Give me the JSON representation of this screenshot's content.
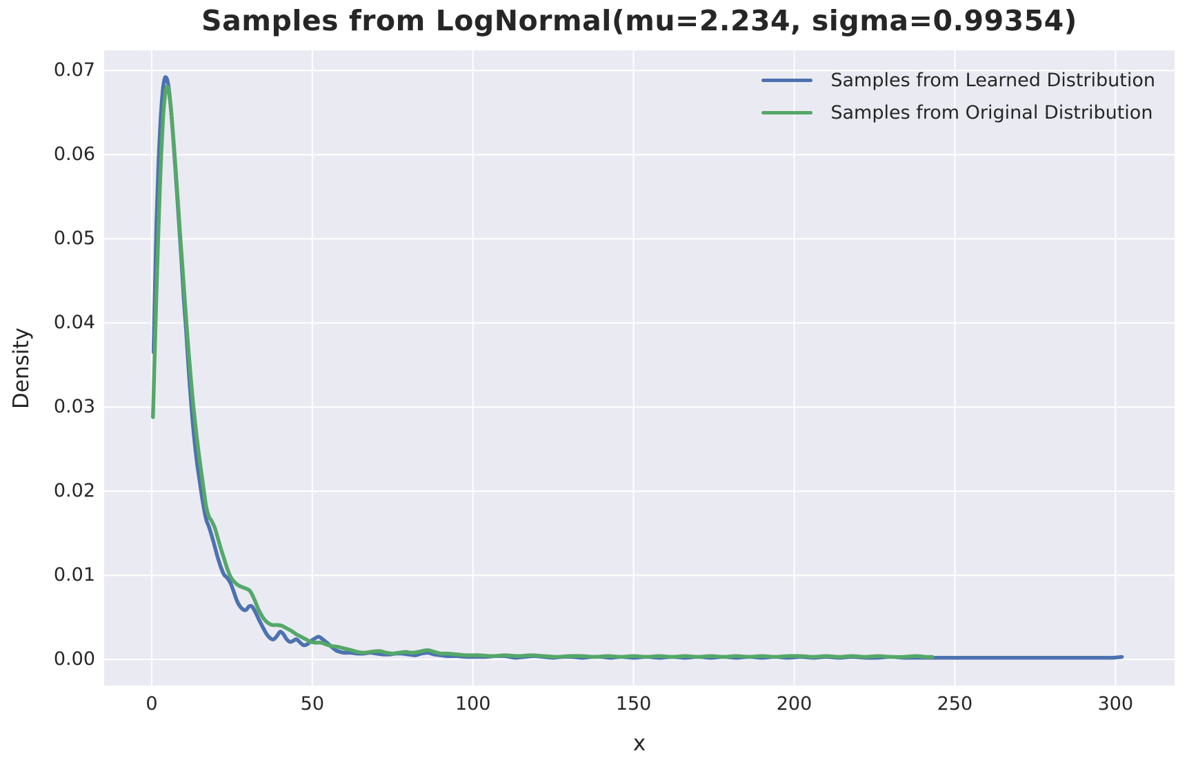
{
  "chart_data": {
    "type": "line",
    "subtype": "kde-density",
    "title": "Samples from LogNormal(mu=2.234, sigma=0.99354)",
    "distribution_params": {
      "mu": 2.234,
      "sigma": 0.99354
    },
    "xlabel": "x",
    "ylabel": "Density",
    "xlim": [
      -14.8,
      318.4
    ],
    "ylim": [
      -0.0031,
      0.0724
    ],
    "xtick_values": [
      0,
      50,
      100,
      150,
      200,
      250,
      300
    ],
    "xtick_labels": [
      "0",
      "50",
      "100",
      "150",
      "200",
      "250",
      "300"
    ],
    "ytick_values": [
      0.0,
      0.01,
      0.02,
      0.03,
      0.04,
      0.05,
      0.06,
      0.07
    ],
    "ytick_labels": [
      "0.00",
      "0.01",
      "0.02",
      "0.03",
      "0.04",
      "0.05",
      "0.06",
      "0.07"
    ],
    "grid": true,
    "style": "seaborn-darkgrid",
    "axes_background": "#EAEAF2",
    "gridline_color": "#FFFFFF",
    "text_color": "#262626",
    "line_width": 5.5,
    "legend": {
      "position": "upper right",
      "frame": false
    },
    "series": [
      {
        "name": "Samples from Learned Distribution",
        "color": "#4C72B0",
        "points": [
          [
            0.6,
            0.0365
          ],
          [
            0.8,
            0.0405
          ],
          [
            1.1,
            0.0455
          ],
          [
            1.5,
            0.052
          ],
          [
            2,
            0.0578
          ],
          [
            2.5,
            0.0622
          ],
          [
            3,
            0.0655
          ],
          [
            3.5,
            0.0678
          ],
          [
            4,
            0.069
          ],
          [
            4.4,
            0.0692
          ],
          [
            4.9,
            0.0688
          ],
          [
            5.4,
            0.0676
          ],
          [
            6,
            0.0654
          ],
          [
            6.6,
            0.0625
          ],
          [
            7.2,
            0.0592
          ],
          [
            7.9,
            0.0553
          ],
          [
            8.6,
            0.0512
          ],
          [
            9.2,
            0.0478
          ],
          [
            10,
            0.0428
          ],
          [
            10.7,
            0.0392
          ],
          [
            11.5,
            0.0345
          ],
          [
            12.2,
            0.0308
          ],
          [
            13,
            0.0272
          ],
          [
            14,
            0.0237
          ],
          [
            15,
            0.021
          ],
          [
            16,
            0.0185
          ],
          [
            17,
            0.0166
          ],
          [
            17.8,
            0.0158
          ],
          [
            18.6,
            0.0148
          ],
          [
            19.5,
            0.0136
          ],
          [
            20.5,
            0.0122
          ],
          [
            21.5,
            0.011
          ],
          [
            22.5,
            0.0101
          ],
          [
            23.5,
            0.0097
          ],
          [
            24.5,
            0.0091
          ],
          [
            25.5,
            0.0081
          ],
          [
            26.5,
            0.007
          ],
          [
            27.5,
            0.0063
          ],
          [
            28.6,
            0.0059
          ],
          [
            29.4,
            0.0059
          ],
          [
            30.3,
            0.0063
          ],
          [
            31.2,
            0.0063
          ],
          [
            32.2,
            0.0057
          ],
          [
            33.3,
            0.0048
          ],
          [
            34.5,
            0.0039
          ],
          [
            35.8,
            0.003
          ],
          [
            37,
            0.0025
          ],
          [
            38,
            0.0024
          ],
          [
            39,
            0.0028
          ],
          [
            40,
            0.0033
          ],
          [
            41,
            0.003
          ],
          [
            42,
            0.0024
          ],
          [
            43,
            0.0021
          ],
          [
            44,
            0.0022
          ],
          [
            45,
            0.0024
          ],
          [
            46,
            0.0021
          ],
          [
            47.2,
            0.0017
          ],
          [
            48.4,
            0.0018
          ],
          [
            49.6,
            0.0022
          ],
          [
            50.8,
            0.0025
          ],
          [
            52,
            0.0027
          ],
          [
            53.2,
            0.0024
          ],
          [
            54.5,
            0.002
          ],
          [
            56,
            0.0015
          ],
          [
            57.3,
            0.0011
          ],
          [
            58.6,
            0.0009
          ],
          [
            60,
            0.0008
          ],
          [
            62,
            0.0008
          ],
          [
            64,
            0.0007
          ],
          [
            66,
            0.0007
          ],
          [
            68,
            0.0008
          ],
          [
            70,
            0.0007
          ],
          [
            72,
            0.0006
          ],
          [
            74,
            0.0006
          ],
          [
            76,
            0.0007
          ],
          [
            78,
            0.0007
          ],
          [
            80,
            0.0006
          ],
          [
            82,
            0.0005
          ],
          [
            84,
            0.0007
          ],
          [
            86,
            0.0008
          ],
          [
            88,
            0.0006
          ],
          [
            90,
            0.0005
          ],
          [
            92,
            0.0004
          ],
          [
            95,
            0.0004
          ],
          [
            98,
            0.0003
          ],
          [
            101,
            0.0003
          ],
          [
            104,
            0.0003
          ],
          [
            107,
            0.0004
          ],
          [
            110,
            0.0004
          ],
          [
            113,
            0.0002
          ],
          [
            116,
            0.0003
          ],
          [
            119,
            0.0004
          ],
          [
            122,
            0.0003
          ],
          [
            125,
            0.0002
          ],
          [
            128,
            0.0003
          ],
          [
            131,
            0.0003
          ],
          [
            134,
            0.0002
          ],
          [
            137,
            0.0003
          ],
          [
            140,
            0.0003
          ],
          [
            143,
            0.0002
          ],
          [
            146,
            0.0003
          ],
          [
            150,
            0.0002
          ],
          [
            154,
            0.0003
          ],
          [
            158,
            0.0002
          ],
          [
            162,
            0.0003
          ],
          [
            166,
            0.0002
          ],
          [
            170,
            0.0003
          ],
          [
            174,
            0.0002
          ],
          [
            178,
            0.0003
          ],
          [
            182,
            0.0002
          ],
          [
            186,
            0.0003
          ],
          [
            190,
            0.0002
          ],
          [
            194,
            0.0003
          ],
          [
            198,
            0.0002
          ],
          [
            202,
            0.0003
          ],
          [
            206,
            0.0002
          ],
          [
            210,
            0.0003
          ],
          [
            214,
            0.0002
          ],
          [
            218,
            0.0003
          ],
          [
            222,
            0.0002
          ],
          [
            226,
            0.0002
          ],
          [
            230,
            0.0003
          ],
          [
            234,
            0.0002
          ],
          [
            238,
            0.0002
          ],
          [
            242,
            0.0002
          ],
          [
            246,
            0.0002
          ],
          [
            250,
            0.0002
          ],
          [
            255,
            0.0002
          ],
          [
            260,
            0.0002
          ],
          [
            265,
            0.0002
          ],
          [
            270,
            0.0002
          ],
          [
            275,
            0.0002
          ],
          [
            280,
            0.0002
          ],
          [
            285,
            0.0002
          ],
          [
            290,
            0.0002
          ],
          [
            295,
            0.0002
          ],
          [
            299,
            0.0002
          ],
          [
            302,
            0.0003
          ]
        ]
      },
      {
        "name": "Samples from Original Distribution",
        "color": "#55A868",
        "points": [
          [
            0.4,
            0.0288
          ],
          [
            0.7,
            0.033
          ],
          [
            1.1,
            0.0385
          ],
          [
            1.5,
            0.0438
          ],
          [
            2,
            0.05
          ],
          [
            2.5,
            0.0556
          ],
          [
            3,
            0.0603
          ],
          [
            3.5,
            0.064
          ],
          [
            4,
            0.0666
          ],
          [
            4.5,
            0.0679
          ],
          [
            5,
            0.068
          ],
          [
            5.5,
            0.067
          ],
          [
            6.1,
            0.065
          ],
          [
            6.7,
            0.0622
          ],
          [
            7.4,
            0.0586
          ],
          [
            8.1,
            0.0547
          ],
          [
            8.8,
            0.0508
          ],
          [
            9.6,
            0.0465
          ],
          [
            10.4,
            0.0422
          ],
          [
            11.2,
            0.038
          ],
          [
            12.1,
            0.0338
          ],
          [
            13,
            0.03
          ],
          [
            14,
            0.0265
          ],
          [
            15,
            0.0235
          ],
          [
            16,
            0.0207
          ],
          [
            17,
            0.0181
          ],
          [
            17.8,
            0.017
          ],
          [
            18.6,
            0.0165
          ],
          [
            19.6,
            0.0157
          ],
          [
            20.6,
            0.0144
          ],
          [
            21.6,
            0.0131
          ],
          [
            22.6,
            0.0119
          ],
          [
            23.6,
            0.0107
          ],
          [
            24.6,
            0.0098
          ],
          [
            25.8,
            0.0092
          ],
          [
            27,
            0.0088
          ],
          [
            28.2,
            0.0086
          ],
          [
            29.5,
            0.0084
          ],
          [
            30.7,
            0.0081
          ],
          [
            32,
            0.0071
          ],
          [
            33.3,
            0.0059
          ],
          [
            34.6,
            0.005
          ],
          [
            36,
            0.0044
          ],
          [
            37.5,
            0.0041
          ],
          [
            39,
            0.0041
          ],
          [
            40.5,
            0.004
          ],
          [
            42,
            0.0037
          ],
          [
            43.5,
            0.0034
          ],
          [
            45,
            0.003
          ],
          [
            46.5,
            0.0027
          ],
          [
            48,
            0.0024
          ],
          [
            49.5,
            0.0021
          ],
          [
            51,
            0.002
          ],
          [
            52.6,
            0.002
          ],
          [
            54.2,
            0.0018
          ],
          [
            56,
            0.0016
          ],
          [
            58,
            0.0015
          ],
          [
            60,
            0.0013
          ],
          [
            62.2,
            0.0011
          ],
          [
            64,
            0.0009
          ],
          [
            66,
            0.0008
          ],
          [
            68,
            0.0009
          ],
          [
            70.8,
            0.001
          ],
          [
            73,
            0.0008
          ],
          [
            75,
            0.0007
          ],
          [
            77,
            0.0008
          ],
          [
            79,
            0.0009
          ],
          [
            81,
            0.0008
          ],
          [
            83,
            0.0009
          ],
          [
            85.8,
            0.0011
          ],
          [
            88,
            0.0009
          ],
          [
            90,
            0.0007
          ],
          [
            92,
            0.0007
          ],
          [
            95,
            0.0006
          ],
          [
            98,
            0.0005
          ],
          [
            102,
            0.0005
          ],
          [
            106,
            0.0004
          ],
          [
            110,
            0.0005
          ],
          [
            114,
            0.0004
          ],
          [
            118,
            0.0005
          ],
          [
            122,
            0.0004
          ],
          [
            126,
            0.0003
          ],
          [
            130,
            0.0004
          ],
          [
            134,
            0.0004
          ],
          [
            138,
            0.0003
          ],
          [
            142,
            0.0004
          ],
          [
            146,
            0.0003
          ],
          [
            150,
            0.0004
          ],
          [
            154,
            0.0003
          ],
          [
            158,
            0.0004
          ],
          [
            162,
            0.0003
          ],
          [
            166,
            0.0004
          ],
          [
            170,
            0.0003
          ],
          [
            174,
            0.0004
          ],
          [
            178,
            0.0003
          ],
          [
            182,
            0.0004
          ],
          [
            186,
            0.0003
          ],
          [
            190,
            0.0004
          ],
          [
            194,
            0.0003
          ],
          [
            198,
            0.0004
          ],
          [
            202,
            0.0004
          ],
          [
            206,
            0.0003
          ],
          [
            210,
            0.0004
          ],
          [
            214,
            0.0003
          ],
          [
            218,
            0.0004
          ],
          [
            222,
            0.0003
          ],
          [
            226,
            0.0004
          ],
          [
            230,
            0.0003
          ],
          [
            234,
            0.0003
          ],
          [
            238,
            0.0004
          ],
          [
            241,
            0.0003
          ],
          [
            243,
            0.0003
          ]
        ]
      }
    ]
  }
}
